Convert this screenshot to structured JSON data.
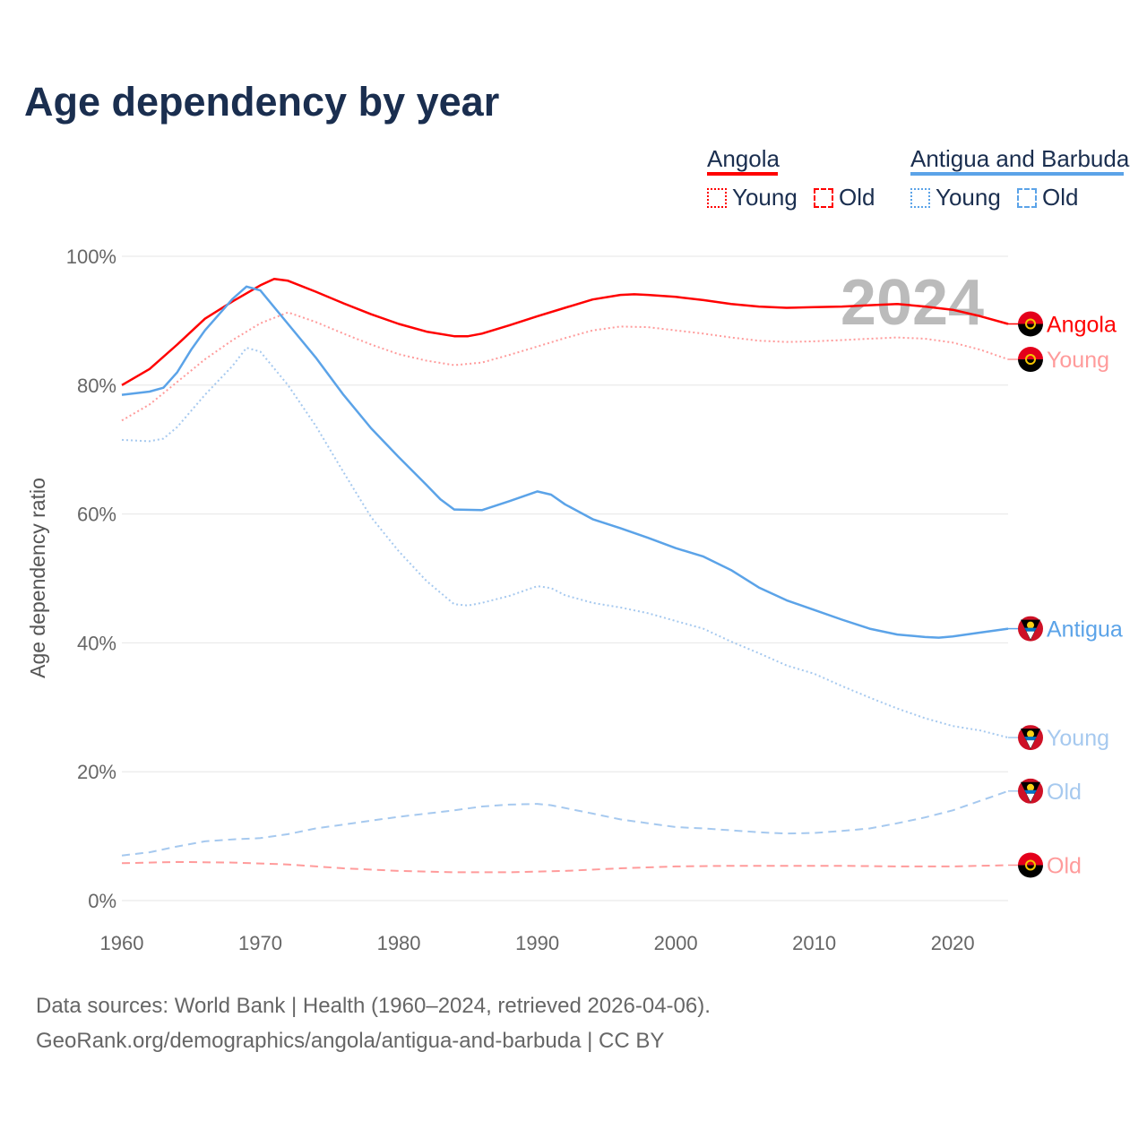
{
  "title": "Age dependency by year",
  "legend": {
    "groups": [
      {
        "name": "Angola",
        "color": "#ff0000",
        "light": "#ff9b9b",
        "young": "Young",
        "old": "Old"
      },
      {
        "name": "Antigua and Barbuda",
        "color": "#5ba3e8",
        "light": "#a6c9ef",
        "young": "Young",
        "old": "Old"
      }
    ]
  },
  "year_overlay": "2024",
  "footer": {
    "line1": "Data sources: World Bank | Health (1960–2024, retrieved 2026-04-06).",
    "line2": "GeoRank.org/demographics/angola/antigua-and-barbuda | CC BY"
  },
  "chart_data": {
    "type": "line",
    "title": "Age dependency by year",
    "xlabel": "",
    "ylabel": "Age dependency ratio",
    "xlim": [
      1960,
      2024
    ],
    "ylim": [
      0,
      100
    ],
    "xticks": [
      "1960",
      "1970",
      "1980",
      "1990",
      "2000",
      "2010",
      "2020"
    ],
    "yticks": [
      "0%",
      "20%",
      "40%",
      "60%",
      "80%",
      "100%"
    ],
    "grid": true,
    "legend_position": "top-right",
    "series": [
      {
        "name": "Angola",
        "end_label": "Angola",
        "style": "solid",
        "color": "#ff0000",
        "flag": "angola",
        "x": [
          1960,
          1962,
          1964,
          1966,
          1968,
          1970,
          1971,
          1972,
          1974,
          1976,
          1978,
          1980,
          1982,
          1984,
          1985,
          1986,
          1988,
          1990,
          1992,
          1994,
          1996,
          1997,
          1998,
          2000,
          2002,
          2004,
          2006,
          2008,
          2010,
          2012,
          2014,
          2016,
          2018,
          2020,
          2022,
          2024
        ],
        "y": [
          80.0,
          82.5,
          86.3,
          90.3,
          93.0,
          95.5,
          96.5,
          96.2,
          94.5,
          92.7,
          91.0,
          89.5,
          88.3,
          87.6,
          87.6,
          88.0,
          89.3,
          90.7,
          92.0,
          93.3,
          94.0,
          94.1,
          94.0,
          93.7,
          93.2,
          92.6,
          92.2,
          92.0,
          92.1,
          92.2,
          92.4,
          92.6,
          92.2,
          91.7,
          90.7,
          89.5
        ]
      },
      {
        "name": "Angola Young",
        "end_label": "Young",
        "style": "dotted",
        "color": "#ff9b9b",
        "flag": "angola",
        "x": [
          1960,
          1962,
          1964,
          1966,
          1968,
          1970,
          1972,
          1974,
          1976,
          1978,
          1980,
          1982,
          1984,
          1986,
          1988,
          1990,
          1992,
          1994,
          1996,
          1998,
          2000,
          2002,
          2004,
          2006,
          2008,
          2010,
          2012,
          2014,
          2016,
          2018,
          2020,
          2022,
          2024
        ],
        "y": [
          74.5,
          77.0,
          80.5,
          84.0,
          87.0,
          89.6,
          91.3,
          89.8,
          88.0,
          86.3,
          84.8,
          83.8,
          83.1,
          83.5,
          84.7,
          86.0,
          87.3,
          88.5,
          89.1,
          89.0,
          88.5,
          88.0,
          87.4,
          86.9,
          86.7,
          86.8,
          87.0,
          87.2,
          87.4,
          87.2,
          86.6,
          85.5,
          84.0
        ]
      },
      {
        "name": "Angola Old",
        "end_label": "Old",
        "style": "dashed",
        "color": "#ff9b9b",
        "flag": "angola",
        "x": [
          1960,
          1964,
          1968,
          1972,
          1976,
          1980,
          1984,
          1988,
          1992,
          1996,
          2000,
          2004,
          2008,
          2012,
          2016,
          2020,
          2024
        ],
        "y": [
          5.8,
          6.0,
          5.9,
          5.6,
          5.0,
          4.6,
          4.4,
          4.4,
          4.6,
          5.0,
          5.3,
          5.4,
          5.4,
          5.4,
          5.3,
          5.3,
          5.5
        ]
      },
      {
        "name": "Antigua and Barbuda",
        "end_label": "Antigua",
        "style": "solid",
        "color": "#5ba3e8",
        "flag": "antigua",
        "x": [
          1960,
          1962,
          1963,
          1964,
          1965,
          1966,
          1968,
          1969,
          1970,
          1972,
          1974,
          1976,
          1978,
          1980,
          1982,
          1983,
          1984,
          1986,
          1988,
          1990,
          1991,
          1992,
          1994,
          1996,
          1998,
          2000,
          2002,
          2004,
          2006,
          2008,
          2010,
          2012,
          2014,
          2016,
          2018,
          2019,
          2020,
          2022,
          2024
        ],
        "y": [
          78.5,
          79.0,
          79.6,
          82.0,
          85.5,
          88.5,
          93.4,
          95.3,
          94.7,
          89.5,
          84.3,
          78.5,
          73.3,
          68.8,
          64.5,
          62.3,
          60.7,
          60.6,
          62.0,
          63.5,
          63.0,
          61.5,
          59.2,
          57.8,
          56.3,
          54.7,
          53.4,
          51.3,
          48.6,
          46.6,
          45.1,
          43.6,
          42.2,
          41.3,
          40.9,
          40.8,
          41.0,
          41.6,
          42.2
        ]
      },
      {
        "name": "Antigua and Barbuda Young",
        "end_label": "Young",
        "style": "dotted",
        "color": "#a6c9ef",
        "flag": "antigua",
        "x": [
          1960,
          1962,
          1963,
          1964,
          1966,
          1968,
          1969,
          1970,
          1972,
          1974,
          1976,
          1978,
          1980,
          1982,
          1984,
          1985,
          1986,
          1988,
          1990,
          1991,
          1992,
          1994,
          1996,
          1998,
          2000,
          2002,
          2004,
          2006,
          2008,
          2010,
          2012,
          2014,
          2016,
          2018,
          2020,
          2022,
          2024
        ],
        "y": [
          71.5,
          71.3,
          71.7,
          73.5,
          78.5,
          83.0,
          85.8,
          85.2,
          80.0,
          73.7,
          66.5,
          59.5,
          54.2,
          49.6,
          46.0,
          45.8,
          46.2,
          47.3,
          48.8,
          48.5,
          47.4,
          46.2,
          45.5,
          44.6,
          43.4,
          42.2,
          40.2,
          38.4,
          36.5,
          35.2,
          33.3,
          31.5,
          29.8,
          28.3,
          27.1,
          26.4,
          25.3
        ]
      },
      {
        "name": "Antigua and Barbuda Old",
        "end_label": "Old",
        "style": "dashed",
        "color": "#a6c9ef",
        "flag": "antigua",
        "x": [
          1960,
          1962,
          1964,
          1966,
          1968,
          1970,
          1972,
          1974,
          1976,
          1978,
          1980,
          1982,
          1984,
          1986,
          1988,
          1990,
          1991,
          1994,
          1996,
          1998,
          2000,
          2002,
          2004,
          2006,
          2008,
          2010,
          2012,
          2014,
          2016,
          2018,
          2020,
          2022,
          2024
        ],
        "y": [
          7.0,
          7.5,
          8.4,
          9.2,
          9.5,
          9.7,
          10.3,
          11.2,
          11.8,
          12.4,
          13.0,
          13.5,
          14.0,
          14.6,
          14.9,
          15.0,
          14.8,
          13.5,
          12.6,
          12.0,
          11.4,
          11.2,
          10.9,
          10.6,
          10.4,
          10.5,
          10.8,
          11.2,
          12.0,
          12.9,
          14.0,
          15.5,
          17.0
        ]
      }
    ]
  }
}
